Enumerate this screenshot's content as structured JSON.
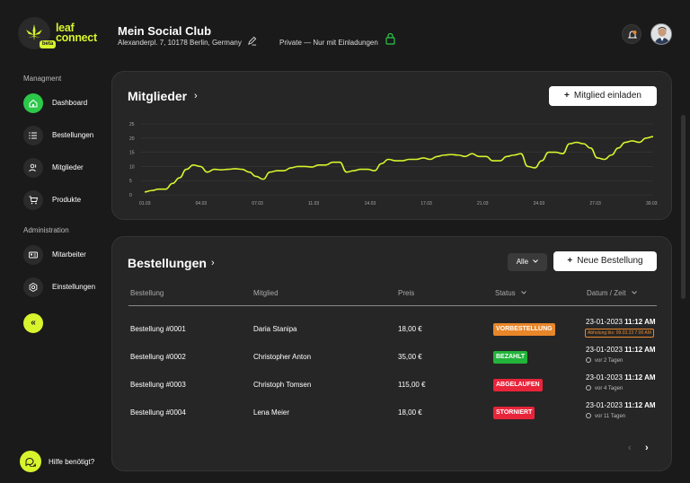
{
  "brand": {
    "line1": "leaf",
    "line2": "connect",
    "pill": "beta",
    "accent": "#d8f42d"
  },
  "header": {
    "title": "Mein Social Club",
    "address": "Alexanderpl. 7, 10178 Berlin, Germany",
    "privacy": "Private — Nur mit Einladungen"
  },
  "sidebar": {
    "section_management": "Managment",
    "section_admin": "Administration",
    "items": [
      {
        "label": "Dashboard",
        "icon": "home-icon",
        "active": true
      },
      {
        "label": "Bestellungen",
        "icon": "list-icon"
      },
      {
        "label": "Mitglieder",
        "icon": "users-icon"
      },
      {
        "label": "Produkte",
        "icon": "cart-icon"
      },
      {
        "label": "Mitarbeiter",
        "icon": "id-card-icon"
      },
      {
        "label": "Einstellungen",
        "icon": "gear-icon"
      }
    ],
    "collapse_glyph": "«",
    "help_label": "Hilfe benötigt?"
  },
  "members_card": {
    "title": "Mitglieder",
    "chevron": "›",
    "invite_label": "Mitglied einladen",
    "plus": "+"
  },
  "chart_data": {
    "type": "line",
    "y_ticks": [
      "0",
      "5",
      "10",
      "15",
      "20",
      "25"
    ],
    "x_ticks": [
      "01.03",
      "04.03",
      "07.03",
      "11.03",
      "14.03",
      "17.03",
      "21.03",
      "24.03",
      "27.03",
      "30.03"
    ],
    "ylim": [
      0,
      25
    ],
    "line_color": "#d8f42d",
    "values": [
      1,
      1.5,
      2,
      2,
      4,
      6,
      9,
      10.5,
      10,
      8,
      9,
      8.8,
      9,
      9.2,
      9,
      8,
      6.5,
      5.5,
      8,
      8.5,
      8.5,
      9.5,
      10,
      10,
      9.8,
      10.5,
      10.5,
      11.5,
      11.5,
      8,
      8.5,
      9,
      9,
      8.5,
      11,
      12.5,
      12,
      12,
      12.5,
      12.5,
      13,
      12.5,
      13.5,
      14,
      14.2,
      14,
      13.5,
      14.5,
      13.5,
      13.5,
      12,
      12,
      13.5,
      14,
      14.5,
      10,
      9.5,
      12,
      15,
      15,
      14.5,
      18,
      18.5,
      18,
      16.5,
      13,
      12.5,
      14,
      16.5,
      18.5,
      19,
      18.5,
      20,
      20.5
    ]
  },
  "orders_card": {
    "title": "Bestellungen",
    "chevron": "›",
    "filter_label": "Alle",
    "new_label": "Neue Bestellung",
    "plus": "+",
    "columns": {
      "order": "Bestellung",
      "member": "Mitglied",
      "price": "Preis",
      "status": "Status",
      "datetime": "Datum / Zeit"
    },
    "rows": [
      {
        "order": "Bestellung #0001",
        "member": "Daria Stanipa",
        "price": "18,00 €",
        "status": "VORBESTELLUNG",
        "status_color": "#e8862a",
        "date": "23-01-2023",
        "time": "11:12 AM",
        "sub": "Abholung bis: 09.03.23 7:00 AM",
        "sub_type": "box"
      },
      {
        "order": "Bestellung #0002",
        "member": "Christopher Anton",
        "price": "35,00 €",
        "status": "BEZAHLT",
        "status_color": "#22b33a",
        "date": "23-01-2023",
        "time": "11:12 AM",
        "sub": "vor 2 Tagen",
        "sub_type": "clock"
      },
      {
        "order": "Bestellung #0003",
        "member": "Christoph Tomsen",
        "price": "115,00 €",
        "status": "ABGELAUFEN",
        "status_color": "#e8243a",
        "date": "23-01-2023",
        "time": "11:12 AM",
        "sub": "vor 4 Tagen",
        "sub_type": "clock"
      },
      {
        "order": "Bestellung #0004",
        "member": "Lena Meier",
        "price": "18,00 €",
        "status": "STORNIERT",
        "status_color": "#e8243a",
        "date": "23-01-2023",
        "time": "11:12 AM",
        "sub": "vor 11 Tagen",
        "sub_type": "clock"
      }
    ],
    "pager_prev": "‹",
    "pager_next": "›"
  }
}
